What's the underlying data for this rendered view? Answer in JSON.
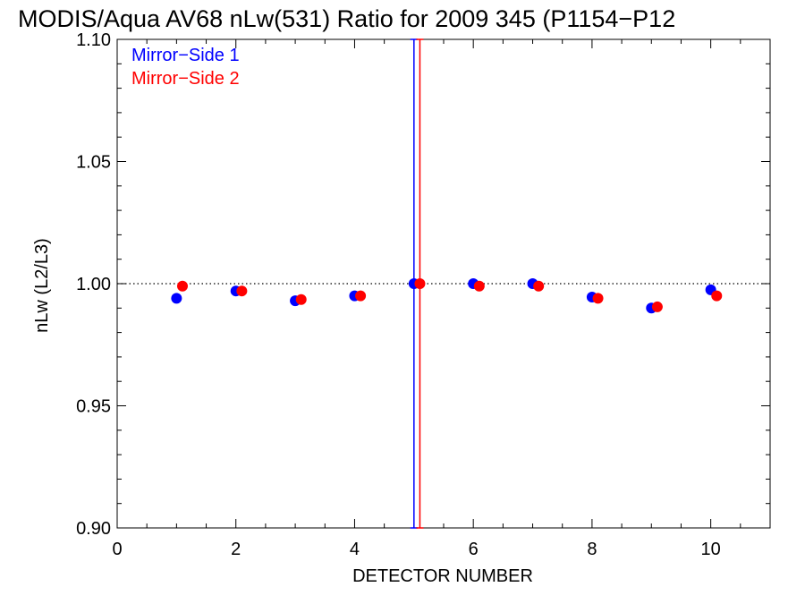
{
  "chart_data": {
    "type": "scatter",
    "title": "MODIS/Aqua AV68 nLw(531) Ratio for 2009 345 (P1154−P12",
    "xlabel": "DETECTOR NUMBER",
    "ylabel": "nLw (L2/L3)",
    "xlim": [
      0,
      11
    ],
    "ylim": [
      0.9,
      1.1
    ],
    "x_ticks": [
      0,
      2,
      4,
      6,
      8,
      10
    ],
    "x_tick_labels": [
      "0",
      "2",
      "4",
      "6",
      "8",
      "10"
    ],
    "y_ticks": [
      0.9,
      0.95,
      1.0,
      1.05,
      1.1
    ],
    "y_tick_labels": [
      "0.90",
      "0.95",
      "1.00",
      "1.05",
      "1.10"
    ],
    "reference_line": 1.0,
    "legend_position": "top-left",
    "series": [
      {
        "name": "Mirror−Side 1",
        "color": "#0000ff",
        "x": [
          1,
          2,
          3,
          4,
          5,
          6,
          7,
          8,
          9,
          10
        ],
        "y": [
          0.994,
          0.997,
          0.993,
          0.995,
          1.0,
          1.0,
          1.0,
          0.9945,
          0.99,
          0.9975
        ],
        "error_bars": [
          {
            "x": 5,
            "low": 0.9,
            "high": 1.1
          }
        ]
      },
      {
        "name": "Mirror−Side 2",
        "color": "#ff0000",
        "x": [
          1.1,
          2.1,
          3.1,
          4.1,
          5.1,
          6.1,
          7.1,
          8.1,
          9.1,
          10.1
        ],
        "y": [
          0.999,
          0.997,
          0.9935,
          0.995,
          1.0,
          0.999,
          0.999,
          0.994,
          0.9905,
          0.995
        ],
        "error_bars": [
          {
            "x": 5.1,
            "low": 0.9,
            "high": 1.1
          }
        ]
      }
    ]
  }
}
